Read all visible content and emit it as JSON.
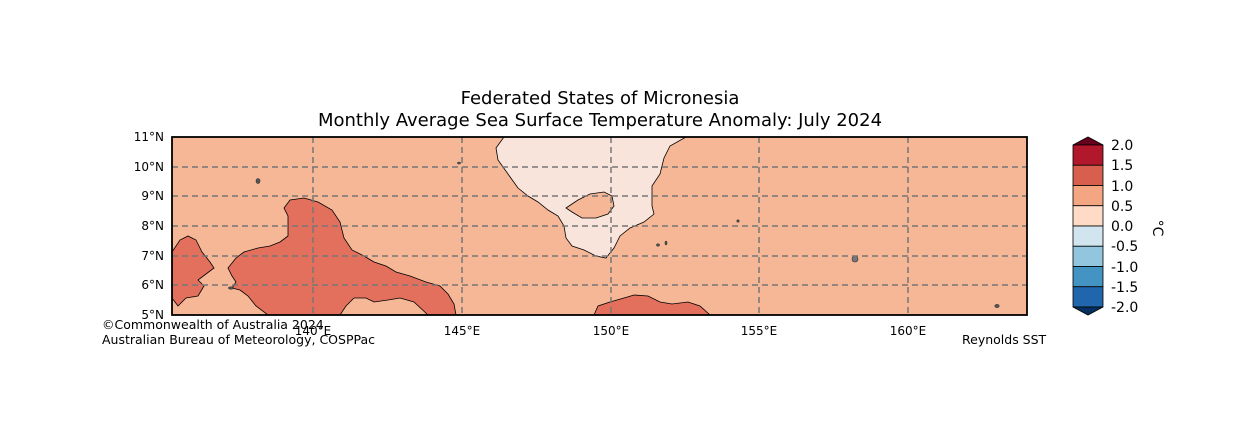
{
  "title": {
    "line1": "Federated States of Micronesia",
    "line2": "Monthly Average Sea Surface Temperature Anomaly: July 2024"
  },
  "axes": {
    "lat_labels": [
      "11°N",
      "10°N",
      "9°N",
      "8°N",
      "7°N",
      "6°N",
      "5°N"
    ],
    "lon_labels": [
      "140°E",
      "145°E",
      "150°E",
      "155°E",
      "160°E"
    ],
    "lat_range": [
      5,
      11
    ],
    "lon_range": [
      135.3,
      164.0
    ]
  },
  "colorbar": {
    "unit": "°C",
    "ticks": [
      "2.0",
      "1.5",
      "1.0",
      "0.5",
      "0.0",
      "-0.5",
      "-1.0",
      "-1.5",
      "-2.0"
    ],
    "colors": {
      "above_2": "#67001f",
      "1.5_2.0": "#b2182b",
      "1.0_1.5": "#d6604d",
      "0.5_1.0": "#f4a582",
      "0.0_0.5": "#fddbc7",
      "-0.5_0.0": "#d1e5f0",
      "-1.0_-0.5": "#92c5de",
      "-1.5_-1.0": "#4393c3",
      "-2.0_-1.5": "#2166ac",
      "below_-2": "#053061"
    }
  },
  "regions": {
    "background_anomaly_band": "0.5–1.0",
    "west_warm_band": "1.0–1.5",
    "south_warm_band": "1.0–1.5",
    "north_cool_band": "0.0–0.5"
  },
  "credits": {
    "line1": "©Commonwealth of Australia 2024",
    "line2": "Australian Bureau of Meteorology, COSPPac",
    "source": "Reynolds SST"
  }
}
